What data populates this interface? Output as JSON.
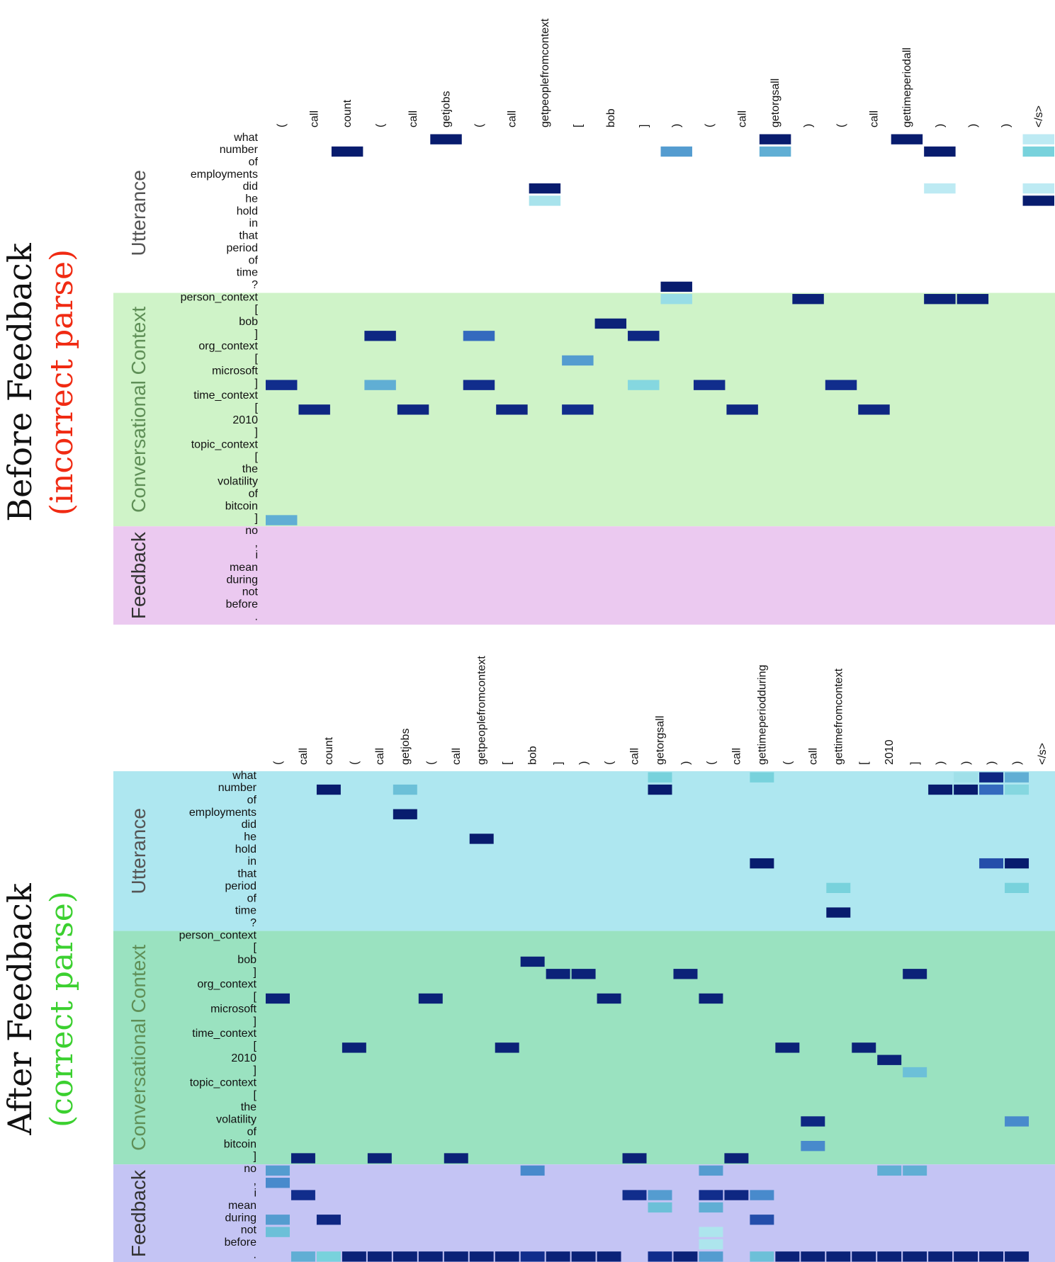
{
  "chart_data": [
    {
      "type": "heatmap",
      "title": "Before Feedback",
      "title_note": "(incorrect parse)",
      "title_note_color": "#f02a12",
      "x_tokens": [
        "(",
        "call",
        "count",
        "(",
        "call",
        "getjobs",
        "(",
        "call",
        "getpeoplefromcontext",
        "[",
        "bob",
        "]",
        ")",
        "(",
        "call",
        "getorgsall",
        ")",
        "(",
        "call",
        "gettimeperiodall",
        ")",
        ")",
        ")",
        "</s>"
      ],
      "y_tokens": [
        "what",
        "number",
        "of",
        "employments",
        "did",
        "he",
        "hold",
        "in",
        "that",
        "period",
        "of",
        "time",
        "?",
        "person_context",
        "[",
        "bob",
        "]",
        "org_context",
        "[",
        "microsoft",
        "]",
        "time_context",
        "[",
        "2010",
        "]",
        "topic_context",
        "[",
        "the",
        "volatility",
        "of",
        "bitcoin",
        "]",
        "no",
        ",",
        "i",
        "mean",
        "during",
        "not",
        "before",
        "."
      ],
      "groups": [
        {
          "label": "Utterance",
          "start": 0,
          "end": 12,
          "bg": "#ffffff",
          "label_color": "#555555"
        },
        {
          "label": "Conversational Context",
          "start": 13,
          "end": 31,
          "bg": "#cff3c8",
          "label_color": "#5f8f57"
        },
        {
          "label": "Feedback",
          "start": 32,
          "end": 39,
          "bg": "#ebc9f0",
          "label_color": "#333333"
        }
      ],
      "cells": [
        [
          1,
          2,
          1.0
        ],
        [
          0,
          5,
          1.0
        ],
        [
          4,
          8,
          1.0
        ],
        [
          5,
          8,
          0.12
        ],
        [
          12,
          12,
          1.0
        ],
        [
          1,
          12,
          0.45
        ],
        [
          13,
          12,
          0.18
        ],
        [
          0,
          15,
          1.0
        ],
        [
          1,
          15,
          0.4
        ],
        [
          0,
          19,
          1.0
        ],
        [
          1,
          20,
          1.0
        ],
        [
          1,
          23,
          0.3
        ],
        [
          0,
          23,
          0.04
        ],
        [
          4,
          20,
          0.04
        ],
        [
          4,
          23,
          0.04
        ],
        [
          5,
          23,
          1.0
        ],
        [
          13,
          16,
          0.95
        ],
        [
          13,
          20,
          0.95
        ],
        [
          13,
          21,
          0.95
        ],
        [
          15,
          10,
          0.95
        ],
        [
          16,
          3,
          0.9
        ],
        [
          16,
          6,
          0.6
        ],
        [
          16,
          11,
          0.9
        ],
        [
          18,
          9,
          0.45
        ],
        [
          20,
          0,
          0.85
        ],
        [
          20,
          3,
          0.4
        ],
        [
          20,
          6,
          0.85
        ],
        [
          20,
          11,
          0.25
        ],
        [
          20,
          13,
          0.85
        ],
        [
          20,
          17,
          0.85
        ],
        [
          22,
          1,
          0.9
        ],
        [
          22,
          4,
          0.9
        ],
        [
          22,
          7,
          0.9
        ],
        [
          22,
          9,
          0.85
        ],
        [
          22,
          14,
          0.9
        ],
        [
          22,
          18,
          0.9
        ],
        [
          31,
          0,
          0.4
        ]
      ]
    },
    {
      "type": "heatmap",
      "title": "After Feedback",
      "title_note": "(correct parse)",
      "title_note_color": "#3bd02f",
      "x_tokens": [
        "(",
        "call",
        "count",
        "(",
        "call",
        "getjobs",
        "(",
        "call",
        "getpeoplefromcontext",
        "[",
        "bob",
        "]",
        ")",
        "(",
        "call",
        "getorgsall",
        ")",
        "(",
        "call",
        "gettimeperiodduring",
        "(",
        "call",
        "gettimefromcontext",
        "[",
        "2010",
        "]",
        ")",
        ")",
        ")",
        ")",
        "</s>"
      ],
      "y_tokens": [
        "what",
        "number",
        "of",
        "employments",
        "did",
        "he",
        "hold",
        "in",
        "that",
        "period",
        "of",
        "time",
        "?",
        "person_context",
        "[",
        "bob",
        "]",
        "org_context",
        "[",
        "microsoft",
        "]",
        "time_context",
        "[",
        "2010",
        "]",
        "topic_context",
        "[",
        "the",
        "volatility",
        "of",
        "bitcoin",
        "]",
        "no",
        ",",
        "i",
        "mean",
        "during",
        "not",
        "before",
        "."
      ],
      "groups": [
        {
          "label": "Utterance",
          "start": 0,
          "end": 12,
          "bg": "#aee7f0",
          "label_color": "#555555"
        },
        {
          "label": "Conversational Context",
          "start": 13,
          "end": 31,
          "bg": "#9ae2c0",
          "label_color": "#5f8f57"
        },
        {
          "label": "Feedback",
          "start": 32,
          "end": 39,
          "bg": "#c4c4f4",
          "label_color": "#333333"
        }
      ],
      "cells": [
        [
          0,
          15,
          0.3
        ],
        [
          0,
          19,
          0.3
        ],
        [
          0,
          28,
          0.9
        ],
        [
          0,
          29,
          0.4
        ],
        [
          0,
          27,
          0.15
        ],
        [
          1,
          2,
          1.0
        ],
        [
          1,
          5,
          0.35
        ],
        [
          1,
          15,
          1.0
        ],
        [
          1,
          26,
          1.0
        ],
        [
          1,
          27,
          1.0
        ],
        [
          1,
          28,
          0.6
        ],
        [
          1,
          29,
          0.25
        ],
        [
          3,
          5,
          1.0
        ],
        [
          5,
          8,
          1.0
        ],
        [
          7,
          19,
          1.0
        ],
        [
          7,
          28,
          0.7
        ],
        [
          7,
          29,
          1.0
        ],
        [
          9,
          22,
          0.3
        ],
        [
          9,
          29,
          0.3
        ],
        [
          11,
          22,
          1.0
        ],
        [
          15,
          10,
          0.95
        ],
        [
          16,
          11,
          0.95
        ],
        [
          16,
          12,
          0.95
        ],
        [
          16,
          16,
          0.95
        ],
        [
          16,
          25,
          0.95
        ],
        [
          18,
          0,
          0.95
        ],
        [
          18,
          6,
          0.95
        ],
        [
          18,
          13,
          0.95
        ],
        [
          18,
          17,
          0.95
        ],
        [
          22,
          3,
          0.95
        ],
        [
          22,
          9,
          0.95
        ],
        [
          22,
          20,
          0.95
        ],
        [
          22,
          23,
          0.95
        ],
        [
          23,
          24,
          0.95
        ],
        [
          24,
          25,
          0.35
        ],
        [
          28,
          21,
          0.9
        ],
        [
          28,
          29,
          0.5
        ],
        [
          30,
          21,
          0.5
        ],
        [
          31,
          1,
          0.95
        ],
        [
          31,
          4,
          0.95
        ],
        [
          31,
          7,
          0.95
        ],
        [
          31,
          14,
          0.95
        ],
        [
          31,
          18,
          0.95
        ],
        [
          32,
          0,
          0.45
        ],
        [
          32,
          10,
          0.5
        ],
        [
          32,
          17,
          0.45
        ],
        [
          32,
          24,
          0.4
        ],
        [
          32,
          25,
          0.4
        ],
        [
          33,
          0,
          0.5
        ],
        [
          34,
          1,
          0.85
        ],
        [
          34,
          14,
          0.85
        ],
        [
          34,
          15,
          0.45
        ],
        [
          34,
          17,
          0.85
        ],
        [
          34,
          18,
          0.9
        ],
        [
          34,
          19,
          0.5
        ],
        [
          35,
          15,
          0.35
        ],
        [
          35,
          17,
          0.4
        ],
        [
          36,
          0,
          0.45
        ],
        [
          36,
          2,
          0.9
        ],
        [
          36,
          19,
          0.7
        ],
        [
          37,
          0,
          0.35
        ],
        [
          37,
          17,
          0.1
        ],
        [
          38,
          17,
          0.1
        ],
        [
          39,
          1,
          0.4
        ],
        [
          39,
          2,
          0.3
        ],
        [
          39,
          3,
          0.95
        ],
        [
          39,
          4,
          0.95
        ],
        [
          39,
          5,
          0.95
        ],
        [
          39,
          6,
          0.95
        ],
        [
          39,
          7,
          0.95
        ],
        [
          39,
          8,
          0.95
        ],
        [
          39,
          9,
          0.95
        ],
        [
          39,
          10,
          0.85
        ],
        [
          39,
          11,
          0.95
        ],
        [
          39,
          12,
          0.95
        ],
        [
          39,
          13,
          0.95
        ],
        [
          39,
          15,
          0.85
        ],
        [
          39,
          16,
          0.95
        ],
        [
          39,
          17,
          0.45
        ],
        [
          39,
          19,
          0.35
        ],
        [
          39,
          20,
          0.95
        ],
        [
          39,
          21,
          0.95
        ],
        [
          39,
          22,
          0.95
        ],
        [
          39,
          23,
          0.95
        ],
        [
          39,
          24,
          0.95
        ],
        [
          39,
          25,
          0.95
        ],
        [
          39,
          26,
          0.95
        ],
        [
          39,
          27,
          0.95
        ],
        [
          39,
          28,
          0.95
        ],
        [
          39,
          29,
          0.95
        ]
      ]
    }
  ]
}
